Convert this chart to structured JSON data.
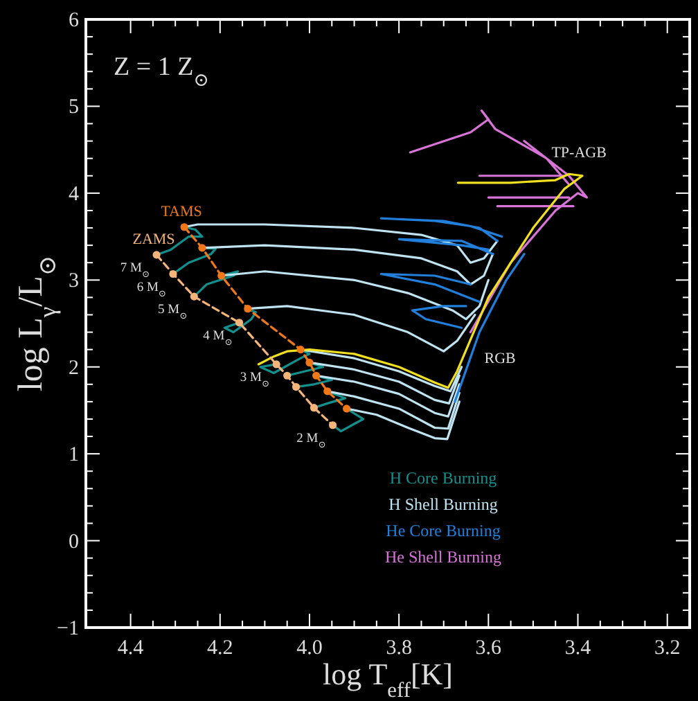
{
  "chart_data": {
    "type": "line",
    "xlabel": "log T$_{eff}$[K]",
    "ylabel": "log L$_{γ}$/L$_{⊙}$",
    "xlim": [
      4.5,
      3.15
    ],
    "ylim": [
      -1,
      6
    ],
    "xticks": [
      {
        "value": 4.4,
        "label": "4.4"
      },
      {
        "value": 4.35,
        "label": null
      },
      {
        "value": 4.3,
        "label": null
      },
      {
        "value": 4.25,
        "label": null
      },
      {
        "value": 4.2,
        "label": "4.2"
      },
      {
        "value": 4.15,
        "label": null
      },
      {
        "value": 4.1,
        "label": null
      },
      {
        "value": 4.05,
        "label": null
      },
      {
        "value": 4,
        "label": "4.0"
      },
      {
        "value": 3.95,
        "label": null
      },
      {
        "value": 3.9,
        "label": null
      },
      {
        "value": 3.85,
        "label": null
      },
      {
        "value": 3.8,
        "label": "3.8"
      },
      {
        "value": 3.75,
        "label": null
      },
      {
        "value": 3.7,
        "label": null
      },
      {
        "value": 3.65,
        "label": null
      },
      {
        "value": 3.6,
        "label": "3.6"
      },
      {
        "value": 3.55,
        "label": null
      },
      {
        "value": 3.5,
        "label": null
      },
      {
        "value": 3.45,
        "label": null
      },
      {
        "value": 3.4,
        "label": "3.4"
      },
      {
        "value": 3.35,
        "label": null
      },
      {
        "value": 3.3,
        "label": null
      },
      {
        "value": 3.25,
        "label": null
      },
      {
        "value": 3.2,
        "label": "3.2"
      }
    ],
    "yticks": [
      {
        "value": -1,
        "label": "−1"
      },
      {
        "value": -0.8,
        "label": null
      },
      {
        "value": -0.6,
        "label": null
      },
      {
        "value": -0.4,
        "label": null
      },
      {
        "value": -0.2,
        "label": null
      },
      0,
      {
        "value": 0.2,
        "label": null
      },
      {
        "value": 0.4,
        "label": null
      },
      {
        "value": 0.6,
        "label": null
      },
      {
        "value": 0.8,
        "label": null
      },
      1,
      {
        "value": 1.2,
        "label": null
      },
      {
        "value": 1.4,
        "label": null
      },
      {
        "value": 1.6,
        "label": null
      },
      {
        "value": 1.8,
        "label": null
      },
      2,
      {
        "value": 2.2,
        "label": null
      },
      {
        "value": 2.4,
        "label": null
      },
      {
        "value": 2.6,
        "label": null
      },
      {
        "value": 2.8,
        "label": null
      },
      3,
      {
        "value": 3.2,
        "label": null
      },
      {
        "value": 3.4,
        "label": null
      },
      {
        "value": 3.6,
        "label": null
      },
      {
        "value": 3.8,
        "label": null
      },
      4,
      {
        "value": 4.2,
        "label": null
      },
      {
        "value": 4.4,
        "label": null
      },
      {
        "value": 4.6,
        "label": null
      },
      {
        "value": 4.8,
        "label": null
      },
      5,
      {
        "value": 5.2,
        "label": null
      },
      {
        "value": 5.4,
        "label": null
      },
      {
        "value": 5.6,
        "label": null
      },
      {
        "value": 5.8,
        "label": null
      },
      6
    ],
    "grid": false,
    "legend": "bottom",
    "marker": "none",
    "line_style": "solid",
    "series": [
      {
        "name": "H Core Burning",
        "color": "#12908e",
        "x": [
          4.342,
          4.31,
          4.27,
          4.24,
          4.255,
          4.28,
          null,
          4.305,
          4.27,
          4.22,
          4.21,
          4.24,
          null,
          4.258,
          4.23,
          4.17,
          4.16,
          4.197,
          null,
          4.157,
          4.19,
          4.17,
          4.13,
          4.12,
          4.138,
          null,
          4.074,
          4.11,
          4.08,
          4.02,
          4.0,
          4.02,
          null,
          4.05,
          4.01,
          3.97,
          4.0,
          null,
          4.03,
          3.99,
          3.95,
          3.985,
          null,
          3.99,
          3.96,
          3.92,
          3.96,
          null,
          3.948,
          3.93,
          3.88,
          3.917
        ],
        "values": [
          3.29,
          3.35,
          3.5,
          3.5,
          3.58,
          3.61,
          null,
          3.07,
          3.2,
          3.3,
          3.36,
          3.37,
          null,
          2.81,
          2.95,
          3.05,
          3.1,
          3.05,
          null,
          2.51,
          2.45,
          2.4,
          2.55,
          2.63,
          2.67,
          null,
          2.03,
          2.0,
          1.93,
          2.1,
          2.15,
          2.2,
          null,
          1.9,
          1.95,
          2.0,
          2.05,
          null,
          1.77,
          1.8,
          1.85,
          1.9,
          null,
          1.53,
          1.58,
          1.64,
          1.72,
          null,
          1.33,
          1.26,
          1.4,
          1.52
        ]
      },
      {
        "name": "H Shell Burning",
        "color": "#bfe3f0",
        "x": [
          4.28,
          4.25,
          4.1,
          3.9,
          3.75,
          3.67,
          3.64,
          3.61,
          3.58,
          null,
          4.24,
          4.1,
          3.9,
          3.75,
          3.67,
          3.64,
          3.61,
          3.59,
          null,
          4.197,
          4.1,
          3.9,
          3.78,
          3.68,
          3.65,
          3.62,
          3.6,
          null,
          4.138,
          4.05,
          3.9,
          3.78,
          3.7,
          3.67,
          3.63,
          null,
          4.02,
          3.9,
          3.8,
          3.72,
          3.685,
          3.66,
          null,
          4.0,
          3.9,
          3.8,
          3.72,
          3.688,
          3.665,
          null,
          3.985,
          3.9,
          3.8,
          3.72,
          3.69,
          3.665,
          null,
          3.96,
          3.9,
          3.8,
          3.72,
          3.69,
          3.665,
          null,
          3.917,
          3.85,
          3.78,
          3.72,
          3.692,
          3.665
        ],
        "values": [
          3.61,
          3.64,
          3.64,
          3.6,
          3.52,
          3.4,
          3.2,
          3.25,
          3.45,
          null,
          3.37,
          3.4,
          3.35,
          3.25,
          3.1,
          2.95,
          3.05,
          3.3,
          null,
          3.05,
          3.1,
          3.0,
          2.85,
          2.65,
          2.55,
          2.7,
          3.0,
          null,
          2.67,
          2.7,
          2.6,
          2.4,
          2.18,
          2.3,
          2.6,
          null,
          2.2,
          2.1,
          1.95,
          1.78,
          1.72,
          2.0,
          null,
          2.05,
          1.97,
          1.83,
          1.62,
          1.58,
          1.9,
          null,
          1.9,
          1.83,
          1.69,
          1.47,
          1.43,
          1.8,
          null,
          1.72,
          1.66,
          1.52,
          1.3,
          1.29,
          1.7,
          null,
          1.52,
          1.45,
          1.3,
          1.18,
          1.17,
          1.6
        ]
      },
      {
        "name": "He Core Burning",
        "color": "#2080dc",
        "x": [
          3.58,
          3.62,
          3.7,
          3.84,
          3.72,
          3.64,
          3.57,
          null,
          3.59,
          3.66,
          3.8,
          3.66,
          3.6,
          null,
          3.62,
          3.72,
          3.84,
          3.72,
          3.64,
          null,
          3.66,
          3.74,
          3.77,
          3.7,
          3.65,
          null,
          3.675,
          3.62,
          3.56,
          3.52
        ],
        "values": [
          3.45,
          3.6,
          3.68,
          3.71,
          3.68,
          3.62,
          3.5,
          null,
          3.3,
          3.45,
          3.47,
          3.4,
          3.35,
          null,
          2.75,
          2.95,
          3.07,
          3.05,
          2.95,
          null,
          2.45,
          2.55,
          2.65,
          2.7,
          2.7,
          null,
          1.6,
          2.4,
          3.0,
          3.3
        ]
      },
      {
        "name": "He Shell Burning",
        "color": "#d874d8",
        "x": [
          3.64,
          3.55,
          3.45,
          3.4,
          3.38,
          3.42,
          3.47,
          3.52,
          null,
          3.42,
          3.47,
          3.585,
          3.615,
          3.6,
          3.64,
          3.775,
          null,
          3.62,
          3.43,
          null,
          3.6,
          3.42,
          null,
          3.58,
          3.41
        ],
        "values": [
          2.4,
          3.2,
          3.8,
          4.0,
          3.95,
          4.2,
          4.4,
          4.6,
          null,
          4.1,
          4.4,
          4.74,
          4.95,
          4.85,
          4.7,
          4.47,
          null,
          4.2,
          4.2,
          null,
          3.95,
          3.95,
          null,
          3.85,
          3.85
        ]
      },
      {
        "color": "#f0e020",
        "x": [
          4.114,
          4.08,
          4.05,
          4.0,
          3.9,
          3.8,
          3.72,
          3.69,
          3.67,
          3.6,
          3.5,
          3.43,
          3.39,
          3.42,
          3.45,
          3.55,
          3.668
        ],
        "values": [
          2.03,
          2.12,
          2.18,
          2.2,
          2.15,
          2.0,
          1.82,
          1.76,
          1.95,
          2.8,
          3.6,
          4.05,
          4.2,
          4.22,
          4.15,
          4.12,
          4.12
        ]
      },
      {
        "name": "ZAMS",
        "color": "#f5b57a",
        "marker": "circle",
        "line_style": "dashed",
        "x": [
          4.342,
          4.305,
          4.258,
          4.157,
          4.074,
          4.05,
          4.03,
          3.99,
          3.948
        ],
        "values": [
          3.29,
          3.07,
          2.81,
          2.51,
          2.03,
          1.9,
          1.77,
          1.53,
          1.33
        ]
      },
      {
        "name": "TAMS",
        "color": "#f07818",
        "marker": "circle",
        "line_style": "dashed",
        "x": [
          4.28,
          4.24,
          4.197,
          4.138,
          4.02,
          4.0,
          3.985,
          3.96,
          3.917
        ],
        "values": [
          3.61,
          3.37,
          3.05,
          2.67,
          2.2,
          2.05,
          1.9,
          1.72,
          1.52
        ]
      }
    ],
    "annotations": [
      "Z = 1 Z$_{⊙}$",
      {
        "text": "7 M$_{⊙}$",
        "x": 4.342,
        "y": 3.29
      },
      {
        "text": "6 M$_{⊙}$",
        "x": 4.305,
        "y": 3.07
      },
      {
        "text": "5 M$_{⊙}$",
        "x": 4.258,
        "y": 2.81
      },
      {
        "text": "4 M$_{⊙}$",
        "x": 4.157,
        "y": 2.51
      },
      {
        "text": "3 M$_{⊙}$",
        "x": 4.074,
        "y": 2.03
      },
      {
        "text": "2 M$_{⊙}$",
        "x": 3.948,
        "y": 1.33
      },
      {
        "text": "TP-AGB",
        "x": 3.49,
        "y": 4.48
      },
      {
        "text": "RGB",
        "x": 3.64,
        "y": 2.11
      }
    ]
  }
}
